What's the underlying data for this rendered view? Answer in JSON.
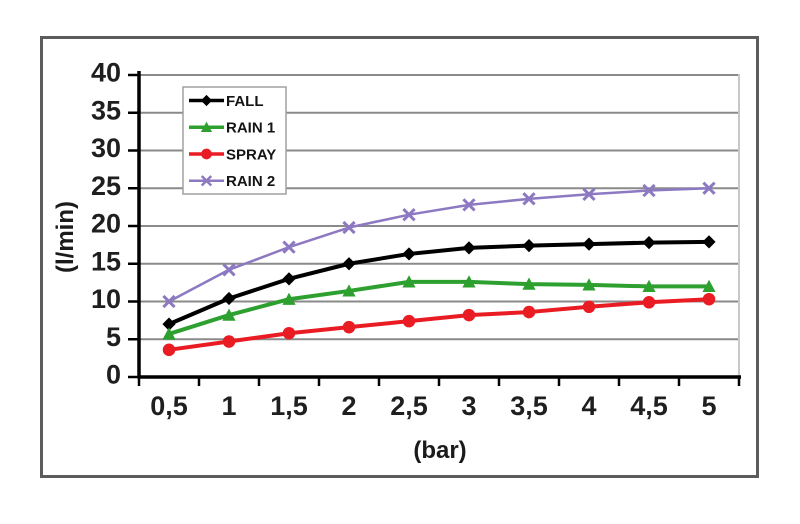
{
  "figure": {
    "background": "#ffffff",
    "frame_border_color": "#5c5c5c"
  },
  "chart_data": {
    "type": "line",
    "title": "",
    "xlabel": "(bar)",
    "ylabel": "(l/min)",
    "x_tick_labels": [
      "0,5",
      "1",
      "1,5",
      "2",
      "2,5",
      "3",
      "3,5",
      "4",
      "4,5",
      "5"
    ],
    "x_values": [
      0.5,
      1,
      1.5,
      2,
      2.5,
      3,
      3.5,
      4,
      4.5,
      5
    ],
    "ylim": [
      0,
      40
    ],
    "y_tick_step": 5,
    "grid": "horizontal",
    "gridline_color": "#8a8a8a",
    "plot_right_border_color": "#c8c8c8",
    "axis_color": "#000000",
    "tick_label_color": "#1f1f1f",
    "legend_position": "top-left-inside",
    "legend_border_color": "#a0a0a0",
    "legend_text_color": "#141414",
    "series": [
      {
        "name": "FALL",
        "color": "#000000",
        "marker": "diamond",
        "line_width": 4,
        "values": [
          7.0,
          10.4,
          13.0,
          15.0,
          16.3,
          17.1,
          17.4,
          17.6,
          17.8,
          17.9
        ]
      },
      {
        "name": "RAIN 1",
        "color": "#2da02f",
        "marker": "triangle",
        "line_width": 4,
        "values": [
          5.7,
          8.2,
          10.3,
          11.4,
          12.6,
          12.6,
          12.3,
          12.2,
          12.0,
          12.0
        ]
      },
      {
        "name": "SPRAY",
        "color": "#ea1c23",
        "marker": "circle",
        "line_width": 4,
        "values": [
          3.6,
          4.7,
          5.8,
          6.6,
          7.4,
          8.2,
          8.6,
          9.3,
          9.9,
          10.3
        ]
      },
      {
        "name": "RAIN 2",
        "color": "#8d79c1",
        "marker": "x",
        "line_width": 2.5,
        "values": [
          10.0,
          14.2,
          17.2,
          19.8,
          21.5,
          22.8,
          23.6,
          24.2,
          24.7,
          25.0
        ]
      }
    ]
  }
}
